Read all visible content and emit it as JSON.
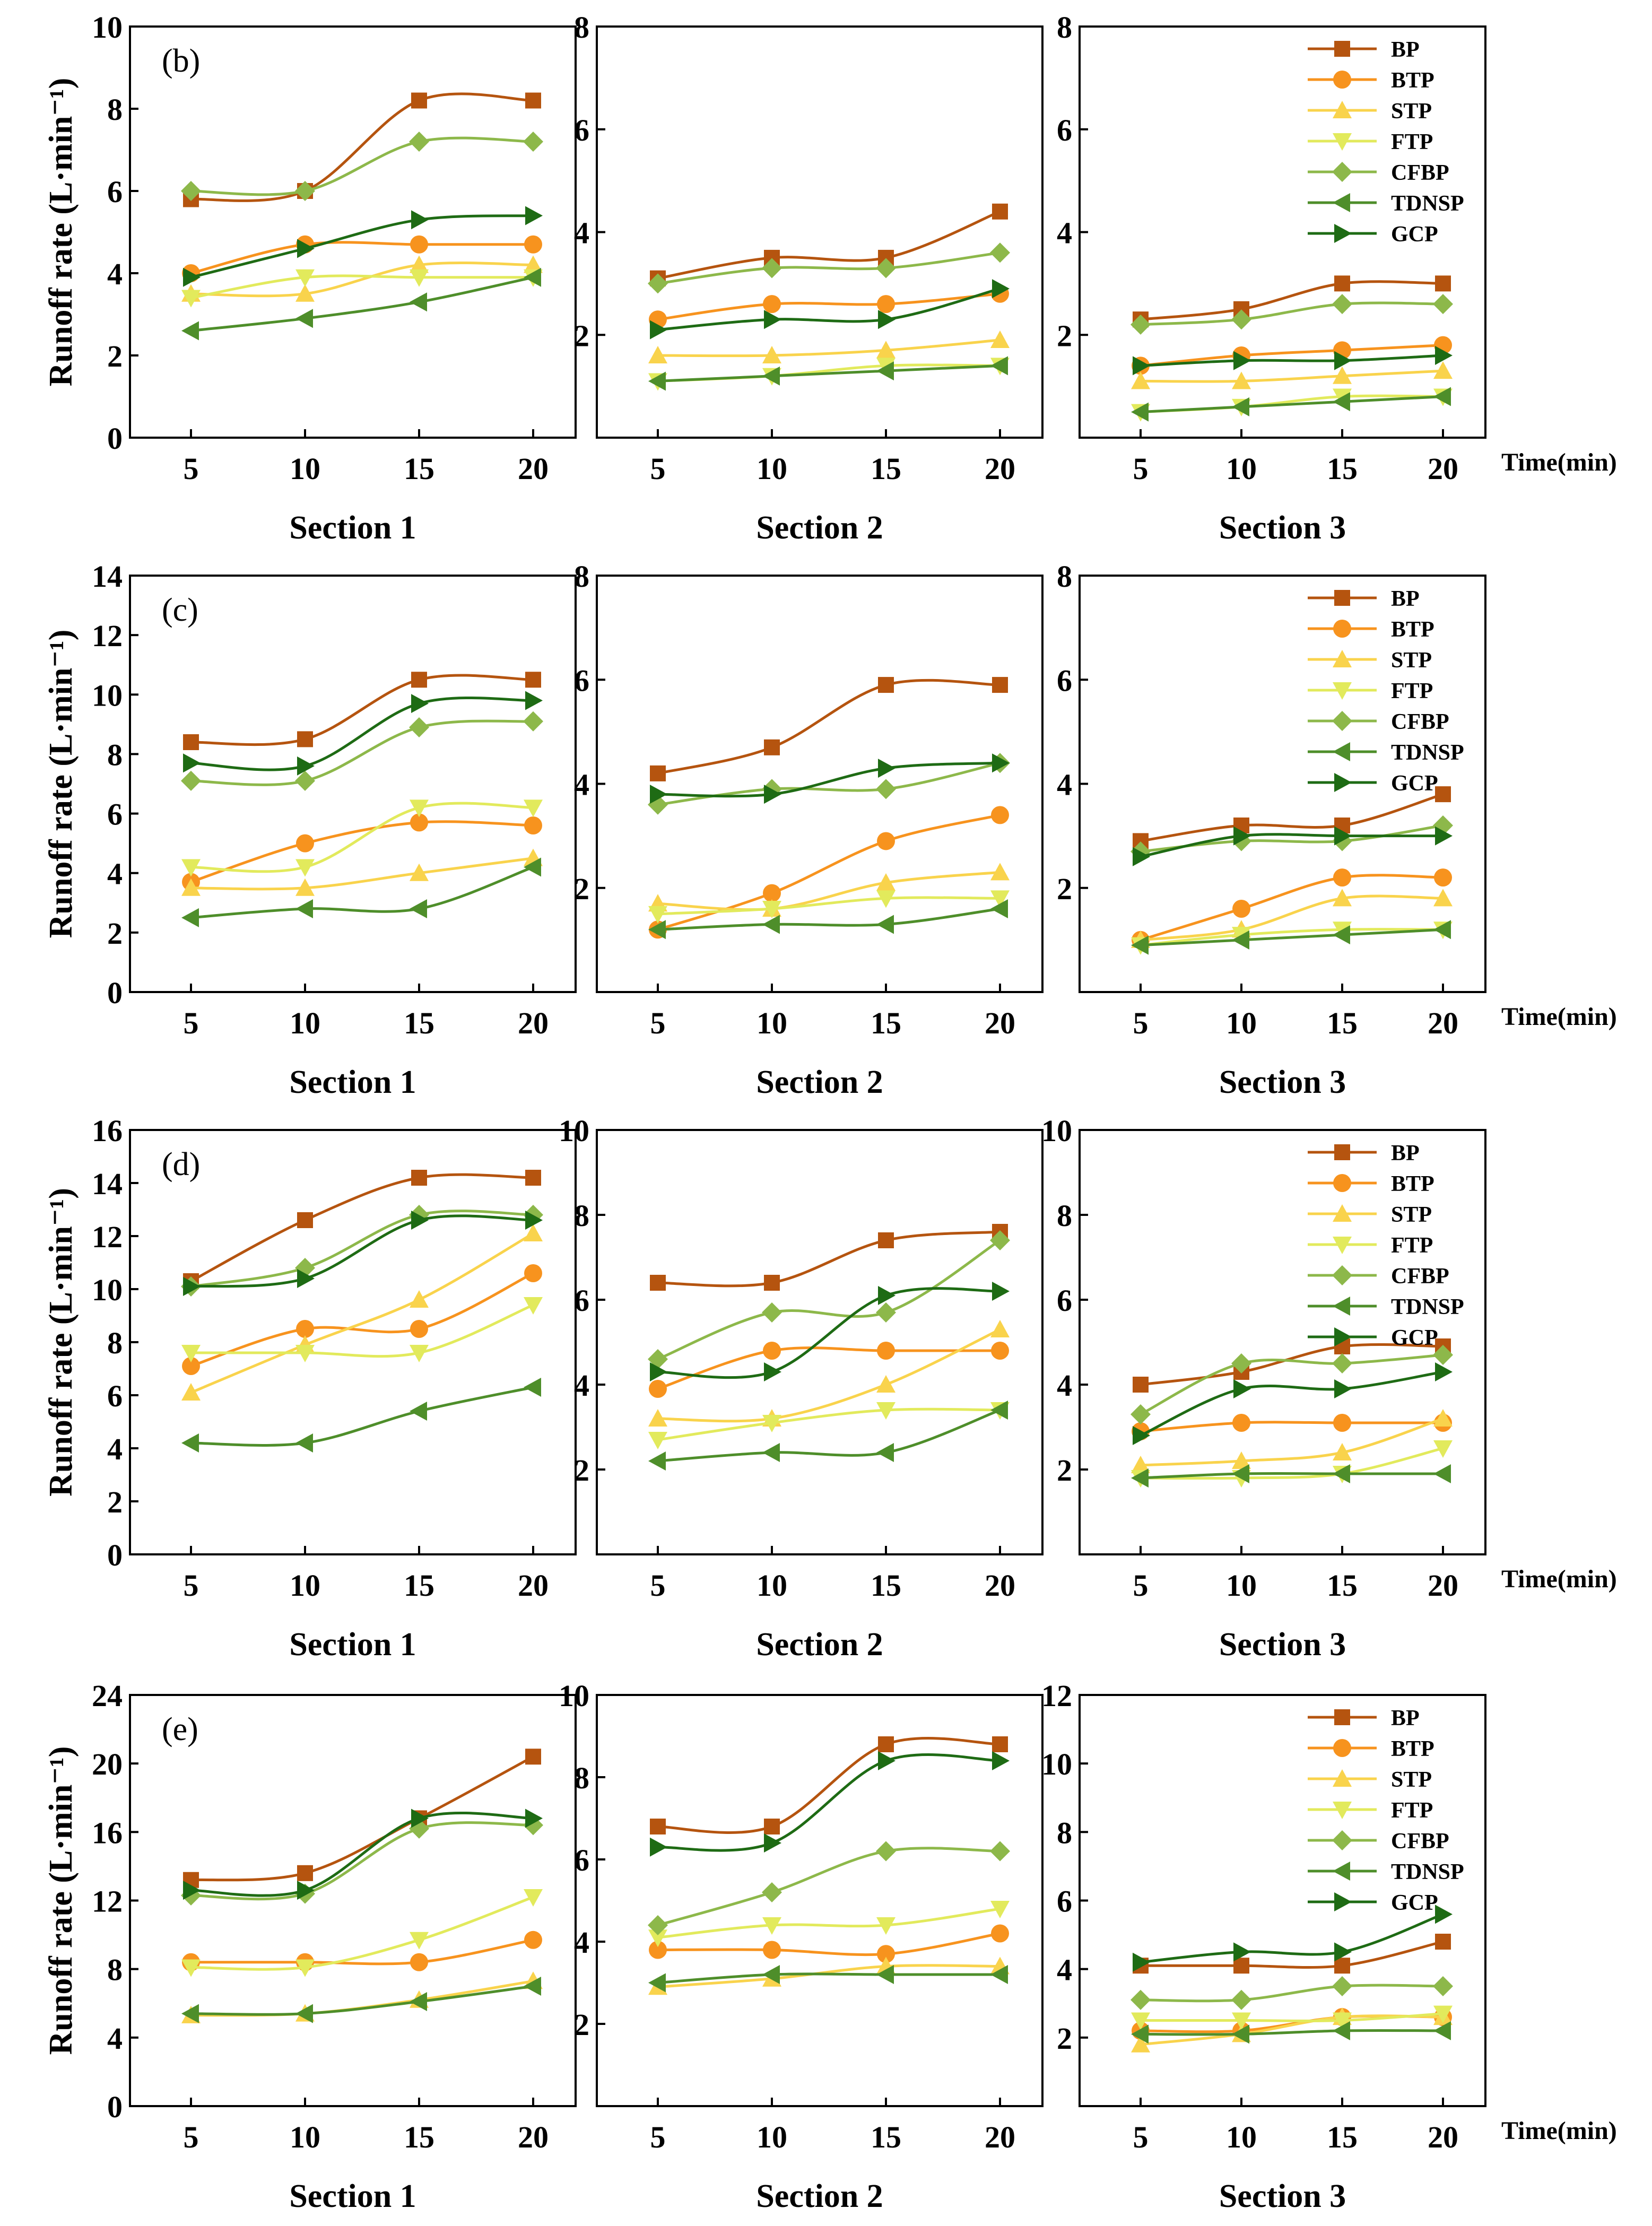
{
  "figure": {
    "time_label": "Time(min)",
    "ylabel": "Runoff rate (L·min⁻¹)"
  },
  "legend": [
    "BP",
    "BTP",
    "STP",
    "FTP",
    "CFBP",
    "TDNSP",
    "GCP"
  ],
  "colors": {
    "BP": "#B5540F",
    "BTP": "#F7931E",
    "STP": "#F9D34C",
    "FTP": "#E2EA5C",
    "CFBP": "#8DB84A",
    "TDNSP": "#4E8E2A",
    "GCP": "#1E6B14"
  },
  "markers": {
    "BP": "square",
    "BTP": "circle",
    "STP": "triangle-up",
    "FTP": "triangle-down",
    "CFBP": "diamond",
    "TDNSP": "triangle-left",
    "GCP": "triangle-right"
  },
  "chart_data": [
    {
      "type": "line",
      "panel": "(b)",
      "title": "Section 1",
      "xlabel": "Section 1",
      "x": [
        5,
        10,
        15,
        20
      ],
      "ylim": [
        0,
        10
      ],
      "yticks": [
        0,
        2,
        4,
        6,
        8,
        10
      ],
      "series": [
        {
          "name": "BP",
          "values": [
            5.8,
            6.0,
            8.2,
            8.2
          ]
        },
        {
          "name": "BTP",
          "values": [
            4.0,
            4.7,
            4.7,
            4.7
          ]
        },
        {
          "name": "STP",
          "values": [
            3.5,
            3.5,
            4.2,
            4.2
          ]
        },
        {
          "name": "FTP",
          "values": [
            3.4,
            3.9,
            3.9,
            3.9
          ]
        },
        {
          "name": "CFBP",
          "values": [
            6.0,
            6.0,
            7.2,
            7.2
          ]
        },
        {
          "name": "TDNSP",
          "values": [
            2.6,
            2.9,
            3.3,
            3.9
          ]
        },
        {
          "name": "GCP",
          "values": [
            3.9,
            4.6,
            5.3,
            5.4
          ]
        }
      ]
    },
    {
      "type": "line",
      "panel": "(b)",
      "title": "Section 2",
      "xlabel": "Section 2",
      "x": [
        5,
        10,
        15,
        20
      ],
      "ylim": [
        0,
        8
      ],
      "yticks": [
        2,
        4,
        6,
        8
      ],
      "series": [
        {
          "name": "BP",
          "values": [
            3.1,
            3.5,
            3.5,
            4.4
          ]
        },
        {
          "name": "BTP",
          "values": [
            2.3,
            2.6,
            2.6,
            2.8
          ]
        },
        {
          "name": "STP",
          "values": [
            1.6,
            1.6,
            1.7,
            1.9
          ]
        },
        {
          "name": "FTP",
          "values": [
            1.1,
            1.2,
            1.4,
            1.4
          ]
        },
        {
          "name": "CFBP",
          "values": [
            3.0,
            3.3,
            3.3,
            3.6
          ]
        },
        {
          "name": "TDNSP",
          "values": [
            1.1,
            1.2,
            1.3,
            1.4
          ]
        },
        {
          "name": "GCP",
          "values": [
            2.1,
            2.3,
            2.3,
            2.9
          ]
        }
      ]
    },
    {
      "type": "line",
      "panel": "(b)",
      "title": "Section 3",
      "xlabel": "Section 3",
      "x": [
        5,
        10,
        15,
        20
      ],
      "ylim": [
        0,
        8
      ],
      "yticks": [
        2,
        4,
        6,
        8
      ],
      "series": [
        {
          "name": "BP",
          "values": [
            2.3,
            2.5,
            3.0,
            3.0
          ]
        },
        {
          "name": "BTP",
          "values": [
            1.4,
            1.6,
            1.7,
            1.8
          ]
        },
        {
          "name": "STP",
          "values": [
            1.1,
            1.1,
            1.2,
            1.3
          ]
        },
        {
          "name": "FTP",
          "values": [
            0.5,
            0.6,
            0.8,
            0.8
          ]
        },
        {
          "name": "CFBP",
          "values": [
            2.2,
            2.3,
            2.6,
            2.6
          ]
        },
        {
          "name": "TDNSP",
          "values": [
            0.5,
            0.6,
            0.7,
            0.8
          ]
        },
        {
          "name": "GCP",
          "values": [
            1.4,
            1.5,
            1.5,
            1.6
          ]
        }
      ]
    },
    {
      "type": "line",
      "panel": "(c)",
      "title": "Section 1",
      "xlabel": "Section 1",
      "x": [
        5,
        10,
        15,
        20
      ],
      "ylim": [
        0,
        14
      ],
      "yticks": [
        0,
        2,
        4,
        6,
        8,
        10,
        12,
        14
      ],
      "series": [
        {
          "name": "BP",
          "values": [
            8.4,
            8.5,
            10.5,
            10.5
          ]
        },
        {
          "name": "BTP",
          "values": [
            3.7,
            5.0,
            5.7,
            5.6
          ]
        },
        {
          "name": "STP",
          "values": [
            3.5,
            3.5,
            4.0,
            4.5
          ]
        },
        {
          "name": "FTP",
          "values": [
            4.2,
            4.2,
            6.2,
            6.2
          ]
        },
        {
          "name": "CFBP",
          "values": [
            7.1,
            7.1,
            8.9,
            9.1
          ]
        },
        {
          "name": "TDNSP",
          "values": [
            2.5,
            2.8,
            2.8,
            4.2
          ]
        },
        {
          "name": "GCP",
          "values": [
            7.7,
            7.6,
            9.7,
            9.8
          ]
        }
      ]
    },
    {
      "type": "line",
      "panel": "(c)",
      "title": "Section 2",
      "xlabel": "Section 2",
      "x": [
        5,
        10,
        15,
        20
      ],
      "ylim": [
        0,
        8
      ],
      "yticks": [
        2,
        4,
        6,
        8
      ],
      "series": [
        {
          "name": "BP",
          "values": [
            4.2,
            4.7,
            5.9,
            5.9
          ]
        },
        {
          "name": "BTP",
          "values": [
            1.2,
            1.9,
            2.9,
            3.4
          ]
        },
        {
          "name": "STP",
          "values": [
            1.7,
            1.6,
            2.1,
            2.3
          ]
        },
        {
          "name": "FTP",
          "values": [
            1.5,
            1.6,
            1.8,
            1.8
          ]
        },
        {
          "name": "CFBP",
          "values": [
            3.6,
            3.9,
            3.9,
            4.4
          ]
        },
        {
          "name": "TDNSP",
          "values": [
            1.2,
            1.3,
            1.3,
            1.6
          ]
        },
        {
          "name": "GCP",
          "values": [
            3.8,
            3.8,
            4.3,
            4.4
          ]
        }
      ]
    },
    {
      "type": "line",
      "panel": "(c)",
      "title": "Section 3",
      "xlabel": "Section 3",
      "x": [
        5,
        10,
        15,
        20
      ],
      "ylim": [
        0,
        8
      ],
      "yticks": [
        2,
        4,
        6,
        8
      ],
      "series": [
        {
          "name": "BP",
          "values": [
            2.9,
            3.2,
            3.2,
            3.8
          ]
        },
        {
          "name": "BTP",
          "values": [
            1.0,
            1.6,
            2.2,
            2.2
          ]
        },
        {
          "name": "STP",
          "values": [
            1.0,
            1.2,
            1.8,
            1.8
          ]
        },
        {
          "name": "FTP",
          "values": [
            0.9,
            1.1,
            1.2,
            1.2
          ]
        },
        {
          "name": "CFBP",
          "values": [
            2.7,
            2.9,
            2.9,
            3.2
          ]
        },
        {
          "name": "TDNSP",
          "values": [
            0.9,
            1.0,
            1.1,
            1.2
          ]
        },
        {
          "name": "GCP",
          "values": [
            2.6,
            3.0,
            3.0,
            3.0
          ]
        }
      ]
    },
    {
      "type": "line",
      "panel": "(d)",
      "title": "Section 1",
      "xlabel": "Section 1",
      "x": [
        5,
        10,
        15,
        20
      ],
      "ylim": [
        0,
        16
      ],
      "yticks": [
        0,
        2,
        4,
        6,
        8,
        10,
        12,
        14,
        16
      ],
      "series": [
        {
          "name": "BP",
          "values": [
            10.3,
            12.6,
            14.2,
            14.2
          ]
        },
        {
          "name": "BTP",
          "values": [
            7.1,
            8.5,
            8.5,
            10.6
          ]
        },
        {
          "name": "STP",
          "values": [
            6.1,
            7.9,
            9.6,
            12.1
          ]
        },
        {
          "name": "FTP",
          "values": [
            7.6,
            7.6,
            7.6,
            9.4
          ]
        },
        {
          "name": "CFBP",
          "values": [
            10.1,
            10.8,
            12.8,
            12.8
          ]
        },
        {
          "name": "TDNSP",
          "values": [
            4.2,
            4.2,
            5.4,
            6.3
          ]
        },
        {
          "name": "GCP",
          "values": [
            10.1,
            10.4,
            12.6,
            12.6
          ]
        }
      ]
    },
    {
      "type": "line",
      "panel": "(d)",
      "title": "Section 2",
      "xlabel": "Section 2",
      "x": [
        5,
        10,
        15,
        20
      ],
      "ylim": [
        0,
        10
      ],
      "yticks": [
        2,
        4,
        6,
        8,
        10
      ],
      "series": [
        {
          "name": "BP",
          "values": [
            6.4,
            6.4,
            7.4,
            7.6
          ]
        },
        {
          "name": "BTP",
          "values": [
            3.9,
            4.8,
            4.8,
            4.8
          ]
        },
        {
          "name": "STP",
          "values": [
            3.2,
            3.2,
            4.0,
            5.3
          ]
        },
        {
          "name": "FTP",
          "values": [
            2.7,
            3.1,
            3.4,
            3.4
          ]
        },
        {
          "name": "CFBP",
          "values": [
            4.6,
            5.7,
            5.7,
            7.4
          ]
        },
        {
          "name": "TDNSP",
          "values": [
            2.2,
            2.4,
            2.4,
            3.4
          ]
        },
        {
          "name": "GCP",
          "values": [
            4.3,
            4.3,
            6.1,
            6.2
          ]
        }
      ]
    },
    {
      "type": "line",
      "panel": "(d)",
      "title": "Section 3",
      "xlabel": "Section 3",
      "x": [
        5,
        10,
        15,
        20
      ],
      "ylim": [
        0,
        10
      ],
      "yticks": [
        2,
        4,
        6,
        8,
        10
      ],
      "series": [
        {
          "name": "BP",
          "values": [
            4.0,
            4.3,
            4.9,
            4.9
          ]
        },
        {
          "name": "BTP",
          "values": [
            2.9,
            3.1,
            3.1,
            3.1
          ]
        },
        {
          "name": "STP",
          "values": [
            2.1,
            2.2,
            2.4,
            3.2
          ]
        },
        {
          "name": "FTP",
          "values": [
            1.8,
            1.8,
            1.9,
            2.5
          ]
        },
        {
          "name": "CFBP",
          "values": [
            3.3,
            4.5,
            4.5,
            4.7
          ]
        },
        {
          "name": "TDNSP",
          "values": [
            1.8,
            1.9,
            1.9,
            1.9
          ]
        },
        {
          "name": "GCP",
          "values": [
            2.8,
            3.9,
            3.9,
            4.3
          ]
        }
      ]
    },
    {
      "type": "line",
      "panel": "(e)",
      "title": "Section 1",
      "xlabel": "Section 1",
      "x": [
        5,
        10,
        15,
        20
      ],
      "ylim": [
        0,
        24
      ],
      "yticks": [
        0,
        4,
        8,
        12,
        16,
        20,
        24
      ],
      "series": [
        {
          "name": "BP",
          "values": [
            13.2,
            13.6,
            16.8,
            20.4
          ]
        },
        {
          "name": "BTP",
          "values": [
            8.4,
            8.4,
            8.4,
            9.7
          ]
        },
        {
          "name": "STP",
          "values": [
            5.3,
            5.4,
            6.2,
            7.3
          ]
        },
        {
          "name": "FTP",
          "values": [
            8.1,
            8.1,
            9.7,
            12.2
          ]
        },
        {
          "name": "CFBP",
          "values": [
            12.3,
            12.4,
            16.2,
            16.4
          ]
        },
        {
          "name": "TDNSP",
          "values": [
            5.4,
            5.4,
            6.1,
            7.0
          ]
        },
        {
          "name": "GCP",
          "values": [
            12.6,
            12.6,
            16.8,
            16.8
          ]
        }
      ]
    },
    {
      "type": "line",
      "panel": "(e)",
      "title": "Section 2",
      "xlabel": "Section 2",
      "x": [
        5,
        10,
        15,
        20
      ],
      "ylim": [
        0,
        10
      ],
      "yticks": [
        2,
        4,
        6,
        8,
        10
      ],
      "series": [
        {
          "name": "BP",
          "values": [
            6.8,
            6.8,
            8.8,
            8.8
          ]
        },
        {
          "name": "BTP",
          "values": [
            3.8,
            3.8,
            3.7,
            4.2
          ]
        },
        {
          "name": "STP",
          "values": [
            2.9,
            3.1,
            3.4,
            3.4
          ]
        },
        {
          "name": "FTP",
          "values": [
            4.1,
            4.4,
            4.4,
            4.8
          ]
        },
        {
          "name": "CFBP",
          "values": [
            4.4,
            5.2,
            6.2,
            6.2
          ]
        },
        {
          "name": "TDNSP",
          "values": [
            3.0,
            3.2,
            3.2,
            3.2
          ]
        },
        {
          "name": "GCP",
          "values": [
            6.3,
            6.4,
            8.4,
            8.4
          ]
        }
      ]
    },
    {
      "type": "line",
      "panel": "(e)",
      "title": "Section 3",
      "xlabel": "Section 3",
      "x": [
        5,
        10,
        15,
        20
      ],
      "ylim": [
        0,
        12
      ],
      "yticks": [
        2,
        4,
        6,
        8,
        10,
        12
      ],
      "series": [
        {
          "name": "BP",
          "values": [
            4.1,
            4.1,
            4.1,
            4.8
          ]
        },
        {
          "name": "BTP",
          "values": [
            2.2,
            2.2,
            2.6,
            2.6
          ]
        },
        {
          "name": "STP",
          "values": [
            1.8,
            2.1,
            2.6,
            2.6
          ]
        },
        {
          "name": "FTP",
          "values": [
            2.5,
            2.5,
            2.5,
            2.7
          ]
        },
        {
          "name": "CFBP",
          "values": [
            3.1,
            3.1,
            3.5,
            3.5
          ]
        },
        {
          "name": "TDNSP",
          "values": [
            2.1,
            2.1,
            2.2,
            2.2
          ]
        },
        {
          "name": "GCP",
          "values": [
            4.2,
            4.5,
            4.5,
            5.6
          ]
        }
      ]
    }
  ]
}
